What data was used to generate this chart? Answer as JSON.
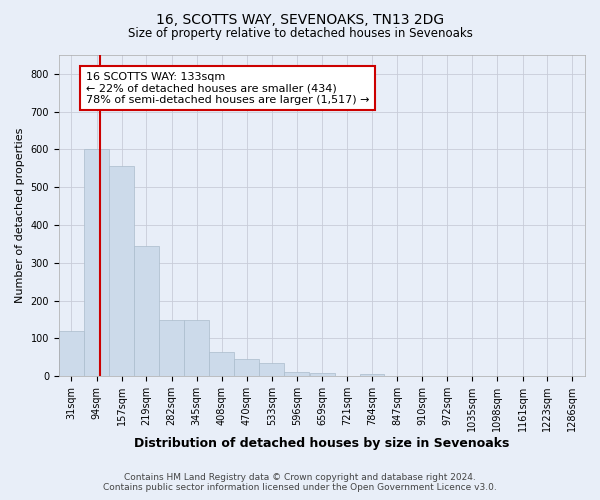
{
  "title": "16, SCOTTS WAY, SEVENOAKS, TN13 2DG",
  "subtitle": "Size of property relative to detached houses in Sevenoaks",
  "xlabel": "Distribution of detached houses by size in Sevenoaks",
  "ylabel": "Number of detached properties",
  "footer_line1": "Contains HM Land Registry data © Crown copyright and database right 2024.",
  "footer_line2": "Contains public sector information licensed under the Open Government Licence v3.0.",
  "annotation_line1": "16 SCOTTS WAY: 133sqm",
  "annotation_line2": "← 22% of detached houses are smaller (434)",
  "annotation_line3": "78% of semi-detached houses are larger (1,517) →",
  "bar_edges": [
    31,
    94,
    157,
    219,
    282,
    345,
    408,
    470,
    533,
    596,
    659,
    721,
    784,
    847,
    910,
    972,
    1035,
    1098,
    1161,
    1223,
    1286
  ],
  "bar_heights": [
    120,
    600,
    555,
    345,
    150,
    148,
    65,
    45,
    35,
    10,
    8,
    0,
    5,
    0,
    0,
    0,
    0,
    0,
    0,
    0
  ],
  "bar_color": "#ccdaea",
  "bar_edge_color": "#aabccc",
  "vline_color": "#cc0000",
  "vline_x": 133,
  "background_color": "#e8eef8",
  "plot_bg_color": "#e8eef8",
  "ylim": [
    0,
    850
  ],
  "yticks": [
    0,
    100,
    200,
    300,
    400,
    500,
    600,
    700,
    800
  ],
  "annotation_box_facecolor": "#ffffff",
  "annotation_box_edgecolor": "#cc0000",
  "grid_color": "#c8ccd8",
  "title_fontsize": 10,
  "subtitle_fontsize": 8.5,
  "xlabel_fontsize": 9,
  "ylabel_fontsize": 8,
  "tick_fontsize": 7,
  "footer_fontsize": 6.5,
  "annotation_fontsize": 8
}
